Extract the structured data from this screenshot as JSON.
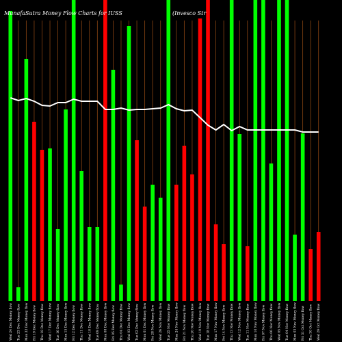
{
  "chart_data": {
    "type": "bar",
    "title_left": "MunafaSutra  Money Flow  Charts for IUSS",
    "title_right": "(Invesco   Str",
    "ylim": [
      0,
      440
    ],
    "line_ylim": [
      0,
      440
    ],
    "colors": {
      "up": "#00ff00",
      "down": "#ff0000",
      "line": "#ffffff",
      "grid": "#8b4513",
      "background": "#000000"
    },
    "bars": [
      {
        "x": "Wed 24 Dec Money flow",
        "value": 424,
        "dir": "up"
      },
      {
        "x": "Tue 23 Dec Money flow",
        "value": 20,
        "dir": "up"
      },
      {
        "x": "Mon 22 Dec Money flow",
        "value": 354,
        "dir": "up"
      },
      {
        "x": "Fri 19 Dec Money flow",
        "value": 262,
        "dir": "down"
      },
      {
        "x": "Thu 18 Dec Money flow",
        "value": 221,
        "dir": "down"
      },
      {
        "x": "Wed 17 Dec Money flow",
        "value": 223,
        "dir": "up"
      },
      {
        "x": "Tue 16 Dec Money flow",
        "value": 105,
        "dir": "up"
      },
      {
        "x": "Mon 15 Dec Money flow",
        "value": 280,
        "dir": "up"
      },
      {
        "x": "Fri 12 Dec Money flow",
        "value": 440,
        "dir": "up"
      },
      {
        "x": "Thu 11 Dec Money flow",
        "value": 190,
        "dir": "up"
      },
      {
        "x": "Wed 10 Dec Money flow",
        "value": 108,
        "dir": "up"
      },
      {
        "x": "Tue 09 Dec Money flow",
        "value": 108,
        "dir": "up"
      },
      {
        "x": "Mon 08 Dec Money flow",
        "value": 440,
        "dir": "down"
      },
      {
        "x": "Fri 05 Dec Money flow",
        "value": 338,
        "dir": "up"
      },
      {
        "x": "Thu 04 Dec Money flow",
        "value": 24,
        "dir": "up"
      },
      {
        "x": "Wed 03 Dec Money flow",
        "value": 402,
        "dir": "up"
      },
      {
        "x": "Tue 02 Dec Money flow",
        "value": 235,
        "dir": "down"
      },
      {
        "x": "Mon 01 Dec Money flow",
        "value": 138,
        "dir": "down"
      },
      {
        "x": "Fri 28 Nov Money flow",
        "value": 170,
        "dir": "up"
      },
      {
        "x": "Wed 26 Nov Money flow",
        "value": 151,
        "dir": "up"
      },
      {
        "x": "Tue 25 Nov Money flow",
        "value": 440,
        "dir": "up"
      },
      {
        "x": "Mon 24 Nov Money flow",
        "value": 170,
        "dir": "down"
      },
      {
        "x": "Fri 21 Nov Money flow",
        "value": 227,
        "dir": "down"
      },
      {
        "x": "Thu 20 Nov Money flow",
        "value": 185,
        "dir": "down"
      },
      {
        "x": "Wed 19 Nov Money flow",
        "value": 413,
        "dir": "down"
      },
      {
        "x": "Tue 18 Nov Money flow",
        "value": 440,
        "dir": "down"
      },
      {
        "x": "Mon 17 Nov Money flow",
        "value": 112,
        "dir": "down"
      },
      {
        "x": "Fri 14 Nov Money flow",
        "value": 83,
        "dir": "down"
      },
      {
        "x": "Thu 13 Nov Money flow",
        "value": 440,
        "dir": "up"
      },
      {
        "x": "Wed 12 Nov Money flow",
        "value": 244,
        "dir": "up"
      },
      {
        "x": "Tue 11 Nov Money flow",
        "value": 80,
        "dir": "down"
      },
      {
        "x": "Mon 10 Nov Money flow",
        "value": 440,
        "dir": "up"
      },
      {
        "x": "Fri 07 Nov Money flow",
        "value": 440,
        "dir": "up"
      },
      {
        "x": "Thu 06 Nov Money flow",
        "value": 201,
        "dir": "up"
      },
      {
        "x": "Wed 05 Nov Money flow",
        "value": 440,
        "dir": "up"
      },
      {
        "x": "Tue 04 Nov Money flow",
        "value": 440,
        "dir": "up"
      },
      {
        "x": "Mon 03 Nov Money flow",
        "value": 97,
        "dir": "up"
      },
      {
        "x": "Fri 31 Oct Money flow",
        "value": 245,
        "dir": "up"
      },
      {
        "x": "Thu 30 Oct Money flow",
        "value": 76,
        "dir": "down"
      },
      {
        "x": "Wed 29 Oct Money flow",
        "value": 101,
        "dir": "down"
      }
    ],
    "line_values": [
      297,
      293,
      296,
      292,
      286,
      285,
      290,
      290,
      295,
      292,
      292,
      292,
      280,
      280,
      282,
      279,
      280,
      280,
      281,
      282,
      287,
      281,
      278,
      279,
      268,
      257,
      250,
      258,
      249,
      255,
      250,
      250,
      250,
      250,
      250,
      250,
      250,
      247,
      247,
      247
    ]
  }
}
